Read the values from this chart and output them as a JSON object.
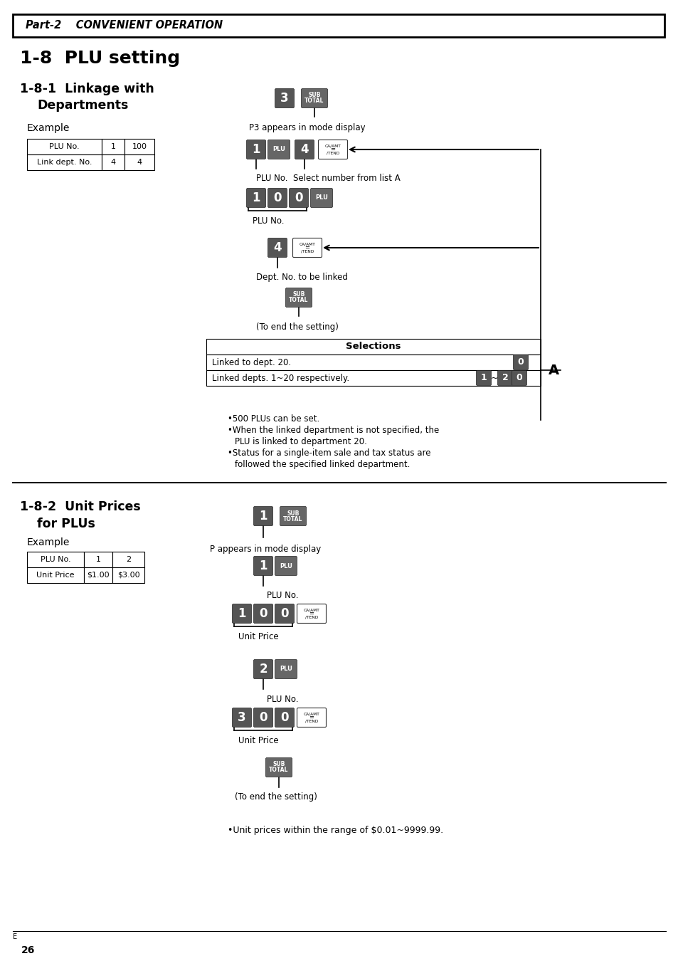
{
  "page_bg": "#ffffff",
  "header_text": "Part-2    CONVENIENT OPERATION",
  "title_18": "1-8  PLU setting",
  "example_label": "Example",
  "table1_headers": [
    "PLU No.",
    "1",
    "100"
  ],
  "table1_row2": [
    "Link dept. No.",
    "4",
    "4"
  ],
  "table2_headers": [
    "PLU No.",
    "1",
    "2"
  ],
  "table2_row2": [
    "Unit Price",
    "$1.00",
    "$3.00"
  ],
  "selections_header": "Selections",
  "sel_row1_text": "Linked to dept. 20.",
  "sel_row2_text": "Linked depts. 1~20 respectively.",
  "p3_label": "P3 appears in mode display",
  "p_label": "P appears in mode display",
  "plu_no_label": "PLU No.",
  "dept_no_label": "Dept. No. to be linked",
  "to_end_label": "(To end the setting)",
  "select_no_label": "PLU No.  Select number from list A",
  "unit_price_label": "Unit Price",
  "bullet1": [
    "•500 PLUs can be set.",
    "•When the linked department is not specified, the",
    "  PLU is linked to department 20.",
    "•Status for a single-item sale and tax status are",
    "  followed the specified linked department."
  ],
  "bullet2": [
    "•Unit prices within the range of $0.01~9999.99."
  ],
  "footer_page": "26",
  "footer_e": "E"
}
